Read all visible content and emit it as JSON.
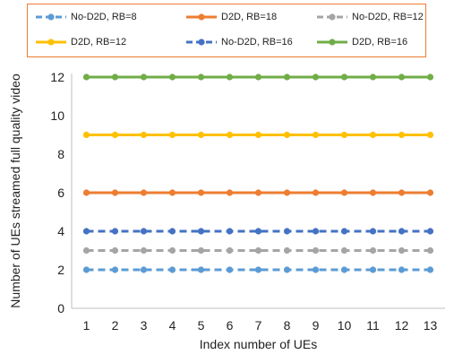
{
  "chart_data": {
    "type": "line",
    "title": "",
    "xlabel": "Index number of UEs",
    "ylabel": "Number of UEs streamed full quality video",
    "x": [
      1,
      2,
      3,
      4,
      5,
      6,
      7,
      8,
      9,
      10,
      11,
      12,
      13
    ],
    "xlim": [
      1,
      13
    ],
    "ylim": [
      0,
      12
    ],
    "yticks": [
      0,
      2,
      4,
      6,
      8,
      10,
      12
    ],
    "grid": false,
    "legend_position": "top",
    "series": [
      {
        "name": "No-D2D, RB=8",
        "color": "#5b9bd5",
        "dashed": true,
        "values": [
          2,
          2,
          2,
          2,
          2,
          2,
          2,
          2,
          2,
          2,
          2,
          2,
          2
        ]
      },
      {
        "name": "D2D, RB=18",
        "color": "#ed7d31",
        "dashed": false,
        "values": [
          6,
          6,
          6,
          6,
          6,
          6,
          6,
          6,
          6,
          6,
          6,
          6,
          6
        ]
      },
      {
        "name": "No-D2D, RB=12",
        "color": "#a5a5a5",
        "dashed": true,
        "values": [
          3,
          3,
          3,
          3,
          3,
          3,
          3,
          3,
          3,
          3,
          3,
          3,
          3
        ]
      },
      {
        "name": "D2D, RB=12",
        "color": "#ffc000",
        "dashed": false,
        "values": [
          9,
          9,
          9,
          9,
          9,
          9,
          9,
          9,
          9,
          9,
          9,
          9,
          9
        ]
      },
      {
        "name": "No-D2D, RB=16",
        "color": "#4472c4",
        "dashed": true,
        "values": [
          4,
          4,
          4,
          4,
          4,
          4,
          4,
          4,
          4,
          4,
          4,
          4,
          4
        ]
      },
      {
        "name": "D2D, RB=16",
        "color": "#70ad47",
        "dashed": false,
        "values": [
          12,
          12,
          12,
          12,
          12,
          12,
          12,
          12,
          12,
          12,
          12,
          12,
          12
        ]
      }
    ]
  }
}
